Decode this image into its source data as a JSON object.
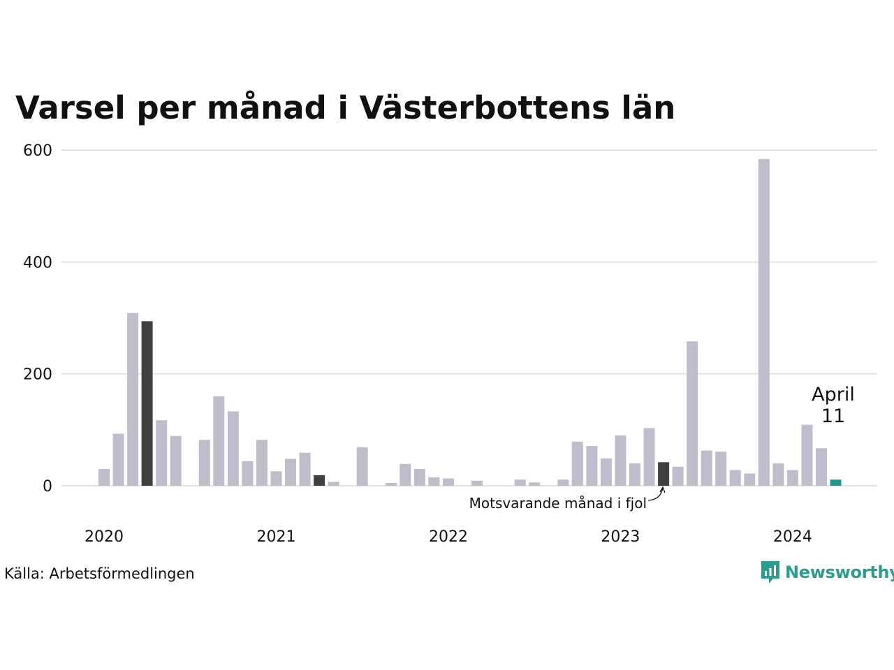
{
  "title": "Varsel per månad i Västerbottens län",
  "source": "Källa: Arbetsförmedlingen",
  "brand": "Newsworthy",
  "colors": {
    "bar": "#bfbdcb",
    "previous_year": "#404040",
    "current": "#1a9a8c",
    "grid": "#e3e3e3",
    "brand": "#2a9d8f"
  },
  "chart_data": {
    "type": "bar",
    "ylim": [
      0,
      600
    ],
    "y_ticks": [
      "0",
      "200",
      "400",
      "600"
    ],
    "x_tick_labels": [
      "2020",
      "2021",
      "2022",
      "2023",
      "2024"
    ],
    "annotation_current": {
      "line1": "April",
      "line2": "11"
    },
    "annotation_previous": "Motsvarande månad i fjol",
    "months": [
      "2020-01",
      "2020-02",
      "2020-03",
      "2020-04",
      "2020-05",
      "2020-06",
      "2020-07",
      "2020-08",
      "2020-09",
      "2020-10",
      "2020-11",
      "2020-12",
      "2021-01",
      "2021-02",
      "2021-03",
      "2021-04",
      "2021-05",
      "2021-06",
      "2021-07",
      "2021-08",
      "2021-09",
      "2021-10",
      "2021-11",
      "2021-12",
      "2022-01",
      "2022-02",
      "2022-03",
      "2022-04",
      "2022-05",
      "2022-06",
      "2022-07",
      "2022-08",
      "2022-09",
      "2022-10",
      "2022-11",
      "2022-12",
      "2023-01",
      "2023-02",
      "2023-03",
      "2023-04",
      "2023-05",
      "2023-06",
      "2023-07",
      "2023-08",
      "2023-09",
      "2023-10",
      "2023-11",
      "2023-12",
      "2024-01",
      "2024-02",
      "2024-03",
      "2024-04"
    ],
    "values": [
      30,
      93,
      309,
      294,
      117,
      89,
      0,
      82,
      160,
      133,
      44,
      82,
      26,
      48,
      59,
      19,
      7,
      0,
      69,
      0,
      5,
      39,
      30,
      15,
      13,
      0,
      9,
      0,
      0,
      11,
      6,
      0,
      11,
      79,
      71,
      49,
      90,
      40,
      103,
      42,
      34,
      258,
      63,
      61,
      28,
      22,
      584,
      40,
      28,
      109,
      67,
      11
    ],
    "highlight": {
      "current_index": 51,
      "previous_year_index": 39
    }
  }
}
